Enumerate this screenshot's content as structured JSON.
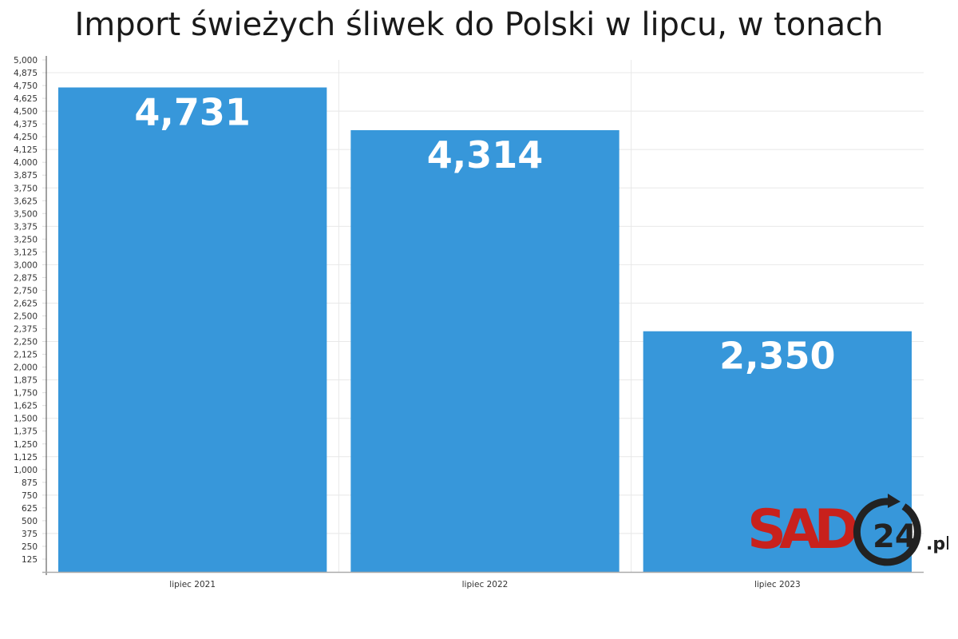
{
  "chart_data": {
    "type": "bar",
    "title": "Import świeżych śliwek do Polski w lipcu, w tonach",
    "categories": [
      "lipiec 2021",
      "lipiec 2022",
      "lipiec 2023"
    ],
    "values": [
      4731,
      4314,
      2350
    ],
    "value_labels": [
      "4,731",
      "4,314",
      "2,350"
    ],
    "xlabel": "",
    "ylabel": "",
    "ylim": [
      0,
      5000
    ],
    "ytick_step": 125,
    "grid": true,
    "bar_color": "#3797da"
  },
  "logo": {
    "text": "SAD",
    "number": "24",
    "suffix": ".pl",
    "red": "#c8211c",
    "dark": "#222222"
  }
}
